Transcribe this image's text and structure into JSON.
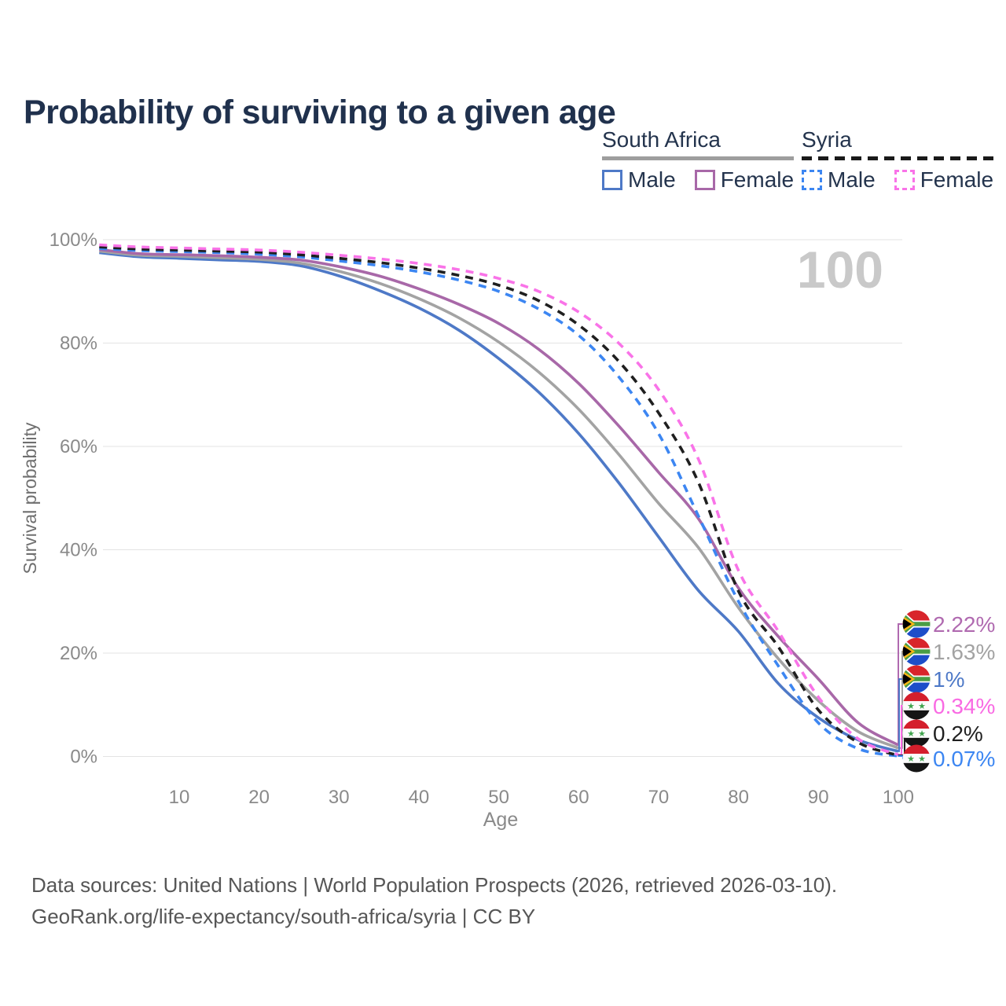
{
  "title": "Probability of surviving to a given age",
  "legend": {
    "groups": [
      {
        "label": "South Africa",
        "line_style": "solid",
        "underline_color": "#9e9e9e",
        "items": [
          {
            "label": "Male",
            "color": "#4e79c7"
          },
          {
            "label": "Female",
            "color": "#a868a8"
          }
        ]
      },
      {
        "label": "Syria",
        "line_style": "dashed",
        "underline_color": "#1a1a1a",
        "items": [
          {
            "label": "Male",
            "color": "#3c86f2"
          },
          {
            "label": "Female",
            "color": "#f973e8"
          }
        ]
      }
    ]
  },
  "chart_data": {
    "type": "line",
    "title": "Probability of surviving to a given age",
    "xlabel": "Age",
    "ylabel": "Survival probability",
    "xlim": [
      0,
      100
    ],
    "ylim": [
      0,
      100
    ],
    "grid": "horizontal",
    "legend_position": "top-right",
    "age_cursor_label": "100",
    "x_ticks": [
      {
        "v": 10,
        "label": "10"
      },
      {
        "v": 20,
        "label": "20"
      },
      {
        "v": 30,
        "label": "30"
      },
      {
        "v": 40,
        "label": "40"
      },
      {
        "v": 50,
        "label": "50"
      },
      {
        "v": 60,
        "label": "60"
      },
      {
        "v": 70,
        "label": "70"
      },
      {
        "v": 80,
        "label": "80"
      },
      {
        "v": 90,
        "label": "90"
      },
      {
        "v": 100,
        "label": "100"
      }
    ],
    "y_ticks": [
      {
        "v": 0,
        "label": "0%"
      },
      {
        "v": 20,
        "label": "20%"
      },
      {
        "v": 40,
        "label": "40%"
      },
      {
        "v": 60,
        "label": "60%"
      },
      {
        "v": 80,
        "label": "80%"
      },
      {
        "v": 100,
        "label": "100%"
      }
    ],
    "x": [
      0,
      5,
      10,
      15,
      20,
      25,
      30,
      35,
      40,
      45,
      50,
      55,
      60,
      65,
      70,
      75,
      80,
      85,
      90,
      95,
      100
    ],
    "series": [
      {
        "name": "South Africa Male",
        "country": "South Africa",
        "sex": "Male",
        "color": "#4e79c7",
        "dash": false,
        "end_value_label": "1%",
        "values": [
          97.5,
          96.7,
          96.4,
          96.1,
          95.8,
          95.0,
          93.0,
          90.2,
          86.8,
          82.5,
          77.0,
          70.5,
          62.5,
          53.0,
          42.5,
          32.1,
          24.2,
          14.1,
          7.5,
          3.2,
          1.0
        ]
      },
      {
        "name": "South Africa Female",
        "country": "South Africa",
        "sex": "Female",
        "color": "#a868a8",
        "dash": false,
        "end_value_label": "2.22%",
        "values": [
          98.1,
          97.3,
          97.1,
          96.9,
          96.6,
          96.1,
          94.8,
          93.0,
          90.5,
          87.5,
          83.8,
          78.8,
          72.2,
          64.0,
          55.0,
          46.0,
          32.6,
          23.2,
          15.0,
          6.5,
          2.22
        ]
      },
      {
        "name": "South Africa Both sexes",
        "country": "South Africa",
        "sex": "Both",
        "color": "#a3a3a3",
        "dash": false,
        "end_value_label": "1.63%",
        "values": [
          97.8,
          97.0,
          96.8,
          96.5,
          96.2,
          95.5,
          93.9,
          91.6,
          88.6,
          84.9,
          80.2,
          74.4,
          67.2,
          58.5,
          49.0,
          40.4,
          28.8,
          18.9,
          10.8,
          4.8,
          1.63
        ]
      },
      {
        "name": "Syria Male",
        "country": "Syria",
        "sex": "Male",
        "color": "#3c86f2",
        "dash": true,
        "end_value_label": "0.07%",
        "values": [
          98.3,
          97.9,
          97.7,
          97.5,
          97.2,
          96.7,
          95.9,
          95.0,
          93.8,
          92.2,
          90.0,
          86.6,
          81.5,
          73.5,
          62.5,
          46.5,
          30.0,
          17.5,
          6.5,
          1.5,
          0.07
        ]
      },
      {
        "name": "Syria Female",
        "country": "Syria",
        "sex": "Female",
        "color": "#f973e8",
        "dash": true,
        "end_value_label": "0.34%",
        "values": [
          99.0,
          98.6,
          98.4,
          98.2,
          98.0,
          97.6,
          97.0,
          96.3,
          95.4,
          94.2,
          92.5,
          90.0,
          86.0,
          80.0,
          71.0,
          57.5,
          36.0,
          24.2,
          11.5,
          3.4,
          0.34
        ]
      },
      {
        "name": "Syria Both sexes",
        "country": "Syria",
        "sex": "Both",
        "color": "#1f1f1f",
        "dash": true,
        "end_value_label": "0.2%",
        "values": [
          98.6,
          98.2,
          98.0,
          97.8,
          97.6,
          97.1,
          96.4,
          95.6,
          94.5,
          93.1,
          91.2,
          88.2,
          83.5,
          76.5,
          66.5,
          53.0,
          32.0,
          21.2,
          9.0,
          2.7,
          0.2
        ]
      }
    ]
  },
  "end_labels": [
    {
      "series_index": 1,
      "flag": "south-africa",
      "value": "2.22%",
      "color": "#b06ab0"
    },
    {
      "series_index": 2,
      "flag": "south-africa",
      "value": "1.63%",
      "color": "#a3a3a3"
    },
    {
      "series_index": 0,
      "flag": "south-africa",
      "value": "1%",
      "color": "#4e79c7"
    },
    {
      "series_index": 4,
      "flag": "syria",
      "value": "0.34%",
      "color": "#f96ae3"
    },
    {
      "series_index": 5,
      "flag": "syria",
      "value": "0.2%",
      "color": "#1f1f1f"
    },
    {
      "series_index": 3,
      "flag": "syria",
      "value": "0.07%",
      "color": "#3c86f2"
    }
  ],
  "footer": {
    "line1": "Data sources: United Nations | World Population Prospects (2026, retrieved 2026-03-10).",
    "line2": "GeoRank.org/life-expectancy/south-africa/syria | CC BY"
  }
}
